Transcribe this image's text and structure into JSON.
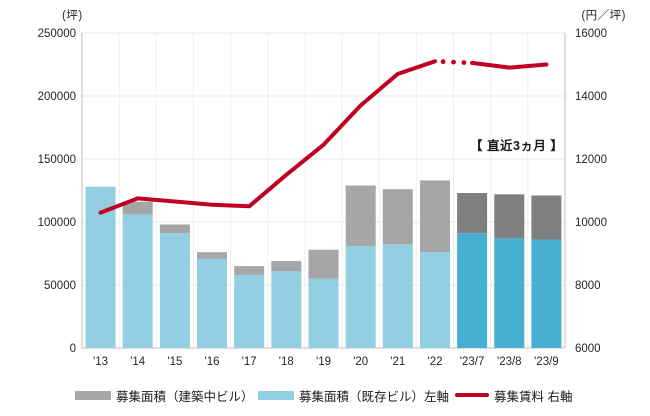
{
  "chart_data": {
    "type": "bar+line combo (stacked bars, left axis; line, right axis)",
    "categories": [
      "'13",
      "'14",
      "'15",
      "'16",
      "'17",
      "'18",
      "'19",
      "'20",
      "'21",
      "'22",
      "'23/7",
      "'23/8",
      "'23/9"
    ],
    "stacked_bars": {
      "existing": {
        "label": "募集面積（既存ビル）左軸",
        "values": [
          128000,
          106000,
          91000,
          71000,
          58000,
          61000,
          55000,
          81000,
          82000,
          76000,
          91000,
          87000,
          86000
        ]
      },
      "construction": {
        "label": "募集面積（建築中ビル）",
        "values": [
          0,
          10000,
          7000,
          5000,
          7000,
          8000,
          23000,
          48000,
          44000,
          57000,
          32000,
          35000,
          35000
        ]
      }
    },
    "line": {
      "label": "募集賃料 右軸",
      "values": [
        10300,
        10750,
        10650,
        10550,
        10500,
        11500,
        12450,
        13700,
        14700,
        15100,
        15050,
        14900,
        15000
      ],
      "dotted_gap_between_indices": [
        9,
        10
      ]
    },
    "left_axis": {
      "unit": "(坪)",
      "min": 0,
      "max": 250000,
      "step": 50000,
      "ticks": [
        "0",
        "50000",
        "100000",
        "150000",
        "200000",
        "250000"
      ]
    },
    "right_axis": {
      "unit": "(円／坪)",
      "min": 6000,
      "max": 16000,
      "step": 2000,
      "ticks": [
        "6000",
        "8000",
        "10000",
        "12000",
        "14000",
        "16000"
      ]
    },
    "annotation": "【 直近3ヵ月 】",
    "recent_start_index": 10,
    "grid": "horizontal + faint vertical category boundaries",
    "legend_position": "bottom",
    "colors": {
      "existing": "#93cfe3",
      "existing_recent": "#47afd2",
      "construction": "#a6a6a6",
      "construction_recent": "#7f7f7f",
      "rent_line": "#c00023",
      "gridline": "#e8e8e8",
      "axis_line": "#bdbdbd",
      "tick_text": "#262626"
    }
  }
}
